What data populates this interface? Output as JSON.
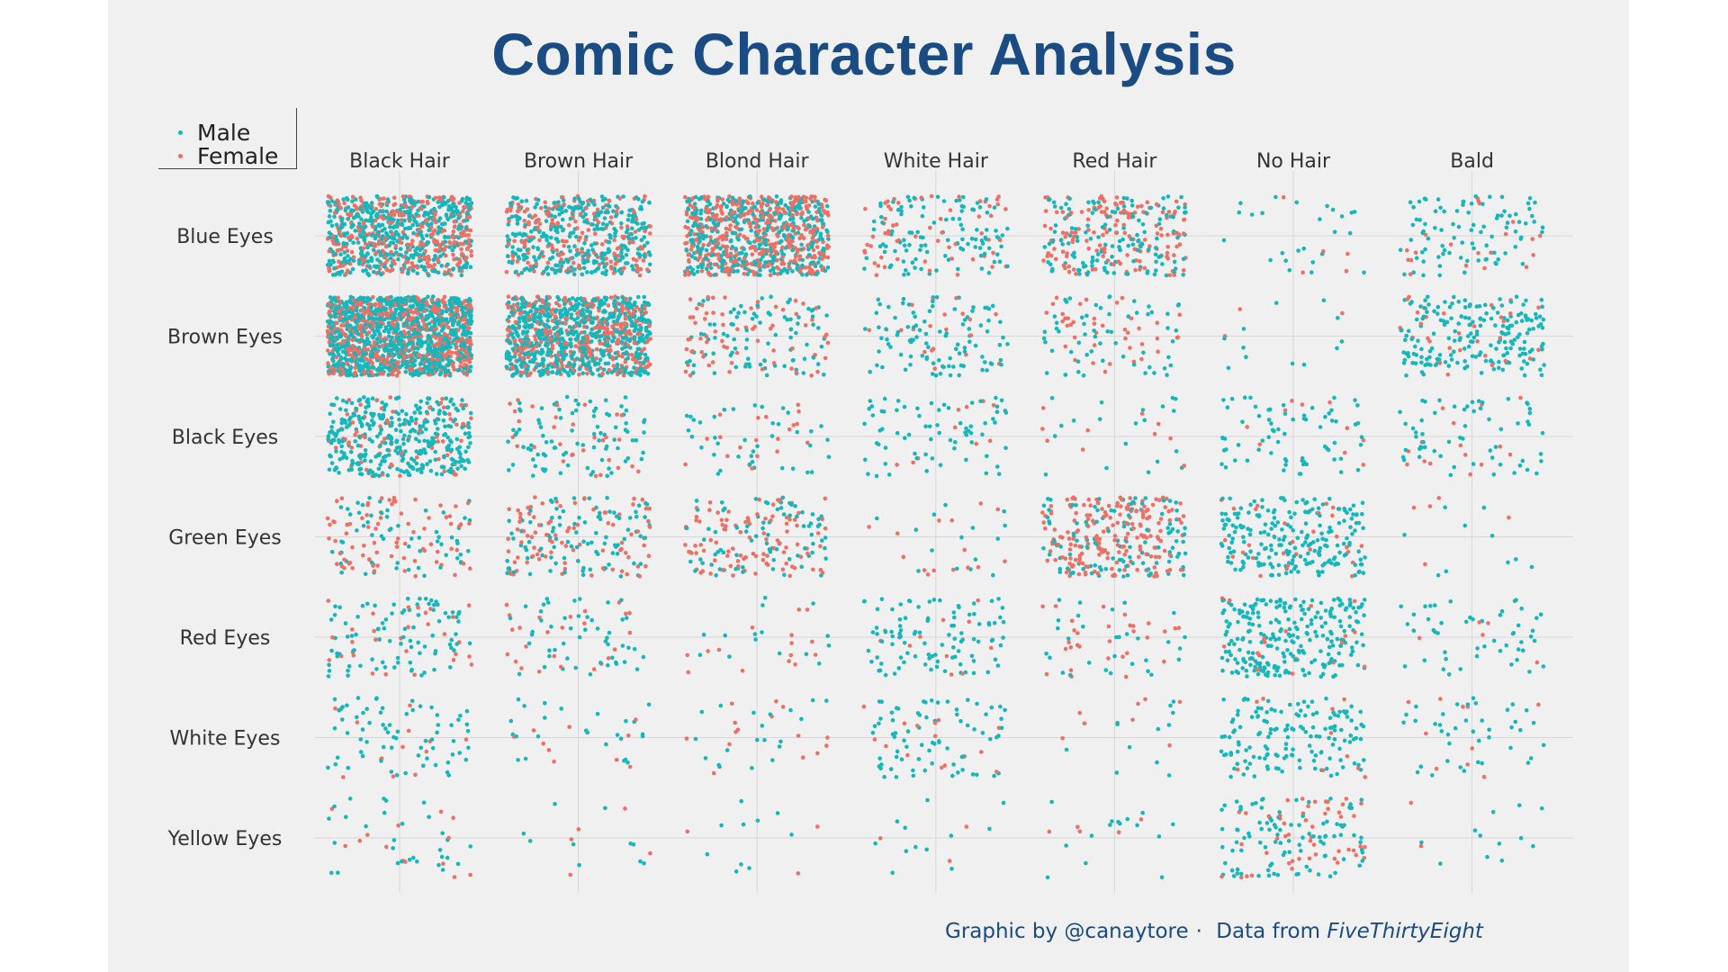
{
  "title": "Comic Character Analysis",
  "colors": {
    "male": "#14b8bc",
    "female": "#ef6f64",
    "title": "#1a4b82",
    "credit": "#1a4b82",
    "panel": "#f0f0f0",
    "grid": "#d6d6d6"
  },
  "legend": {
    "male": "Male",
    "female": "Female"
  },
  "credit": {
    "by": "Graphic by @canaytore",
    "separator": "·",
    "data_prefix": "Data from",
    "source": "FiveThirtyEight"
  },
  "chart_data": {
    "type": "scatter",
    "title": "Comic Character Analysis",
    "x_categories": [
      "Black Hair",
      "Brown Hair",
      "Blond Hair",
      "White Hair",
      "Red Hair",
      "No Hair",
      "Bald"
    ],
    "y_categories": [
      "Blue Eyes",
      "Brown Eyes",
      "Black Eyes",
      "Green Eyes",
      "Red Eyes",
      "White Eyes",
      "Yellow Eyes"
    ],
    "series": [
      {
        "name": "Male",
        "color": "#14b8bc",
        "counts": [
          [
            500,
            350,
            420,
            110,
            150,
            25,
            90
          ],
          [
            1000,
            700,
            90,
            100,
            60,
            12,
            200
          ],
          [
            350,
            90,
            40,
            70,
            20,
            70,
            60
          ],
          [
            60,
            100,
            80,
            15,
            120,
            220,
            10
          ],
          [
            90,
            50,
            15,
            100,
            30,
            250,
            50
          ],
          [
            70,
            25,
            20,
            75,
            12,
            150,
            40
          ],
          [
            30,
            10,
            10,
            12,
            15,
            100,
            12
          ]
        ]
      },
      {
        "name": "Female",
        "color": "#ef6f64",
        "counts": [
          [
            350,
            200,
            450,
            60,
            150,
            5,
            20
          ],
          [
            600,
            400,
            70,
            20,
            40,
            3,
            30
          ],
          [
            80,
            30,
            20,
            10,
            10,
            10,
            15
          ],
          [
            80,
            90,
            100,
            15,
            200,
            30,
            5
          ],
          [
            30,
            25,
            15,
            10,
            30,
            20,
            5
          ],
          [
            12,
            10,
            15,
            15,
            8,
            10,
            10
          ],
          [
            15,
            5,
            3,
            3,
            5,
            50,
            2
          ]
        ]
      }
    ],
    "xlabel": "",
    "ylabel": "",
    "grid": true,
    "legend_position": "top-left",
    "jitter": true
  }
}
